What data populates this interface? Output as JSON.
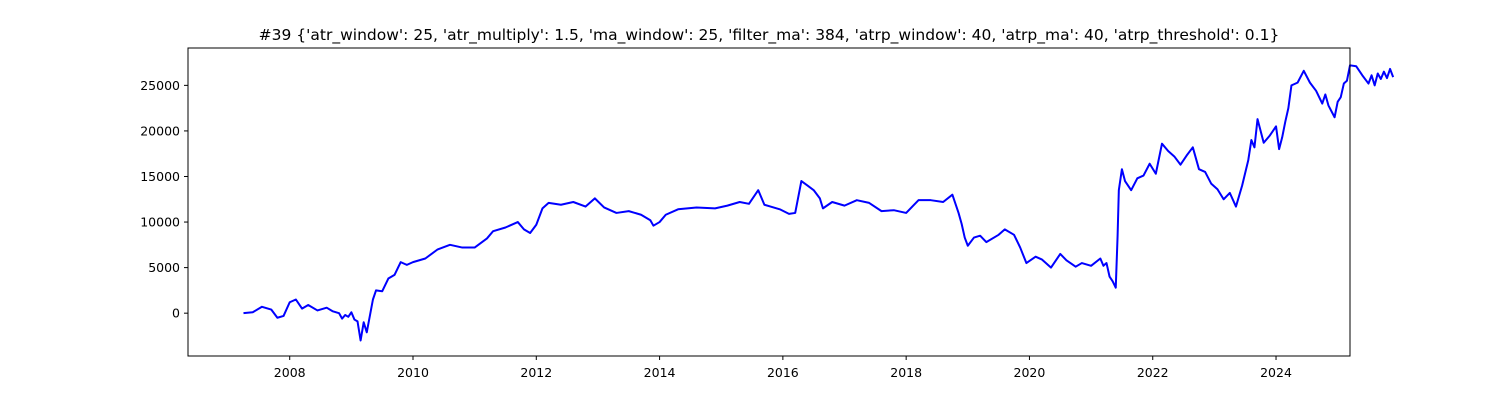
{
  "chart_data": {
    "type": "line",
    "title": "#39 {'atr_window': 25, 'atr_multiply': 1.5, 'ma_window': 25, 'filter_ma': 384, 'atrp_window': 40, 'atrp_ma': 40, 'atrp_threshold': 0.1}",
    "xlabel": "",
    "ylabel": "",
    "xlim": [
      2006.35,
      2025.2
    ],
    "ylim": [
      -4700,
      29100
    ],
    "grid": false,
    "legend": "none",
    "x_ticks": [
      2008,
      2010,
      2012,
      2014,
      2016,
      2018,
      2020,
      2022,
      2024
    ],
    "x_tick_labels": [
      "2008",
      "2010",
      "2012",
      "2014",
      "2016",
      "2018",
      "2020",
      "2022",
      "2024"
    ],
    "y_ticks": [
      0,
      5000,
      10000,
      15000,
      20000,
      25000
    ],
    "y_tick_labels": [
      "0",
      "5000",
      "10000",
      "15000",
      "20000",
      "25000"
    ],
    "series": [
      {
        "color": "#0000ff",
        "points": [
          [
            2007.25,
            0
          ],
          [
            2007.4,
            100
          ],
          [
            2007.55,
            700
          ],
          [
            2007.7,
            400
          ],
          [
            2007.8,
            -500
          ],
          [
            2007.9,
            -300
          ],
          [
            2008.0,
            1200
          ],
          [
            2008.1,
            1500
          ],
          [
            2008.2,
            500
          ],
          [
            2008.3,
            900
          ],
          [
            2008.45,
            300
          ],
          [
            2008.6,
            600
          ],
          [
            2008.7,
            200
          ],
          [
            2008.8,
            0
          ],
          [
            2008.85,
            -600
          ],
          [
            2008.9,
            -200
          ],
          [
            2008.95,
            -400
          ],
          [
            2009.0,
            100
          ],
          [
            2009.05,
            -700
          ],
          [
            2009.1,
            -900
          ],
          [
            2009.15,
            -3000
          ],
          [
            2009.2,
            -1000
          ],
          [
            2009.25,
            -2100
          ],
          [
            2009.35,
            1500
          ],
          [
            2009.4,
            2500
          ],
          [
            2009.5,
            2400
          ],
          [
            2009.6,
            3800
          ],
          [
            2009.7,
            4200
          ],
          [
            2009.8,
            5600
          ],
          [
            2009.9,
            5300
          ],
          [
            2010.0,
            5600
          ],
          [
            2010.2,
            6000
          ],
          [
            2010.4,
            7000
          ],
          [
            2010.6,
            7500
          ],
          [
            2010.8,
            7200
          ],
          [
            2011.0,
            7200
          ],
          [
            2011.2,
            8200
          ],
          [
            2011.3,
            9000
          ],
          [
            2011.5,
            9400
          ],
          [
            2011.7,
            10000
          ],
          [
            2011.8,
            9200
          ],
          [
            2011.9,
            8800
          ],
          [
            2012.0,
            9700
          ],
          [
            2012.1,
            11500
          ],
          [
            2012.2,
            12100
          ],
          [
            2012.4,
            11900
          ],
          [
            2012.6,
            12200
          ],
          [
            2012.8,
            11700
          ],
          [
            2012.95,
            12600
          ],
          [
            2013.1,
            11600
          ],
          [
            2013.3,
            11000
          ],
          [
            2013.5,
            11200
          ],
          [
            2013.7,
            10800
          ],
          [
            2013.85,
            10200
          ],
          [
            2013.9,
            9600
          ],
          [
            2014.0,
            10000
          ],
          [
            2014.1,
            10800
          ],
          [
            2014.3,
            11400
          ],
          [
            2014.6,
            11600
          ],
          [
            2014.9,
            11500
          ],
          [
            2015.1,
            11800
          ],
          [
            2015.3,
            12200
          ],
          [
            2015.45,
            12000
          ],
          [
            2015.6,
            13500
          ],
          [
            2015.7,
            11900
          ],
          [
            2015.8,
            11700
          ],
          [
            2015.95,
            11400
          ],
          [
            2016.1,
            10900
          ],
          [
            2016.2,
            11000
          ],
          [
            2016.3,
            14500
          ],
          [
            2016.4,
            14000
          ],
          [
            2016.5,
            13500
          ],
          [
            2016.6,
            12600
          ],
          [
            2016.65,
            11500
          ],
          [
            2016.8,
            12200
          ],
          [
            2017.0,
            11800
          ],
          [
            2017.2,
            12400
          ],
          [
            2017.4,
            12100
          ],
          [
            2017.6,
            11200
          ],
          [
            2017.8,
            11300
          ],
          [
            2018.0,
            11000
          ],
          [
            2018.2,
            12400
          ],
          [
            2018.4,
            12400
          ],
          [
            2018.6,
            12200
          ],
          [
            2018.75,
            13000
          ],
          [
            2018.85,
            11000
          ],
          [
            2018.9,
            9800
          ],
          [
            2018.95,
            8300
          ],
          [
            2019.0,
            7400
          ],
          [
            2019.1,
            8300
          ],
          [
            2019.2,
            8500
          ],
          [
            2019.3,
            7800
          ],
          [
            2019.5,
            8600
          ],
          [
            2019.6,
            9200
          ],
          [
            2019.75,
            8600
          ],
          [
            2019.85,
            7200
          ],
          [
            2019.95,
            5500
          ],
          [
            2020.1,
            6200
          ],
          [
            2020.2,
            5900
          ],
          [
            2020.35,
            5000
          ],
          [
            2020.5,
            6500
          ],
          [
            2020.6,
            5800
          ],
          [
            2020.75,
            5100
          ],
          [
            2020.85,
            5500
          ],
          [
            2021.0,
            5200
          ],
          [
            2021.15,
            6000
          ],
          [
            2021.2,
            5200
          ],
          [
            2021.25,
            5500
          ],
          [
            2021.3,
            4000
          ],
          [
            2021.35,
            3500
          ],
          [
            2021.4,
            2800
          ],
          [
            2021.43,
            8500
          ],
          [
            2021.45,
            13500
          ],
          [
            2021.5,
            15800
          ],
          [
            2021.55,
            14500
          ],
          [
            2021.65,
            13500
          ],
          [
            2021.75,
            14800
          ],
          [
            2021.85,
            15100
          ],
          [
            2021.95,
            16400
          ],
          [
            2022.05,
            15300
          ],
          [
            2022.15,
            18600
          ],
          [
            2022.25,
            17800
          ],
          [
            2022.35,
            17200
          ],
          [
            2022.45,
            16300
          ],
          [
            2022.55,
            17300
          ],
          [
            2022.65,
            18200
          ],
          [
            2022.75,
            15800
          ],
          [
            2022.85,
            15500
          ],
          [
            2022.95,
            14200
          ],
          [
            2023.05,
            13600
          ],
          [
            2023.15,
            12500
          ],
          [
            2023.25,
            13200
          ],
          [
            2023.35,
            11700
          ],
          [
            2023.45,
            14000
          ],
          [
            2023.55,
            16800
          ],
          [
            2023.6,
            19000
          ],
          [
            2023.65,
            18200
          ],
          [
            2023.7,
            21300
          ],
          [
            2023.8,
            18700
          ],
          [
            2023.9,
            19500
          ],
          [
            2024.0,
            20500
          ],
          [
            2024.05,
            18000
          ],
          [
            2024.1,
            19300
          ],
          [
            2024.15,
            21000
          ],
          [
            2024.2,
            22500
          ],
          [
            2024.25,
            25000
          ],
          [
            2024.35,
            25300
          ],
          [
            2024.45,
            26600
          ],
          [
            2024.55,
            25300
          ],
          [
            2024.65,
            24400
          ],
          [
            2024.75,
            23000
          ],
          [
            2024.8,
            24000
          ],
          [
            2024.85,
            22800
          ],
          [
            2024.95,
            21500
          ],
          [
            2025.0,
            23200
          ],
          [
            2025.05,
            23700
          ],
          [
            2025.1,
            25200
          ],
          [
            2025.15,
            25500
          ],
          [
            2025.2,
            27200
          ],
          [
            2025.3,
            27100
          ],
          [
            2025.4,
            26100
          ],
          [
            2025.5,
            25200
          ],
          [
            2025.55,
            26100
          ],
          [
            2025.6,
            25000
          ],
          [
            2025.65,
            26300
          ],
          [
            2025.7,
            25700
          ],
          [
            2025.75,
            26500
          ],
          [
            2025.8,
            25800
          ],
          [
            2025.85,
            26800
          ],
          [
            2025.9,
            25900
          ]
        ]
      }
    ]
  }
}
